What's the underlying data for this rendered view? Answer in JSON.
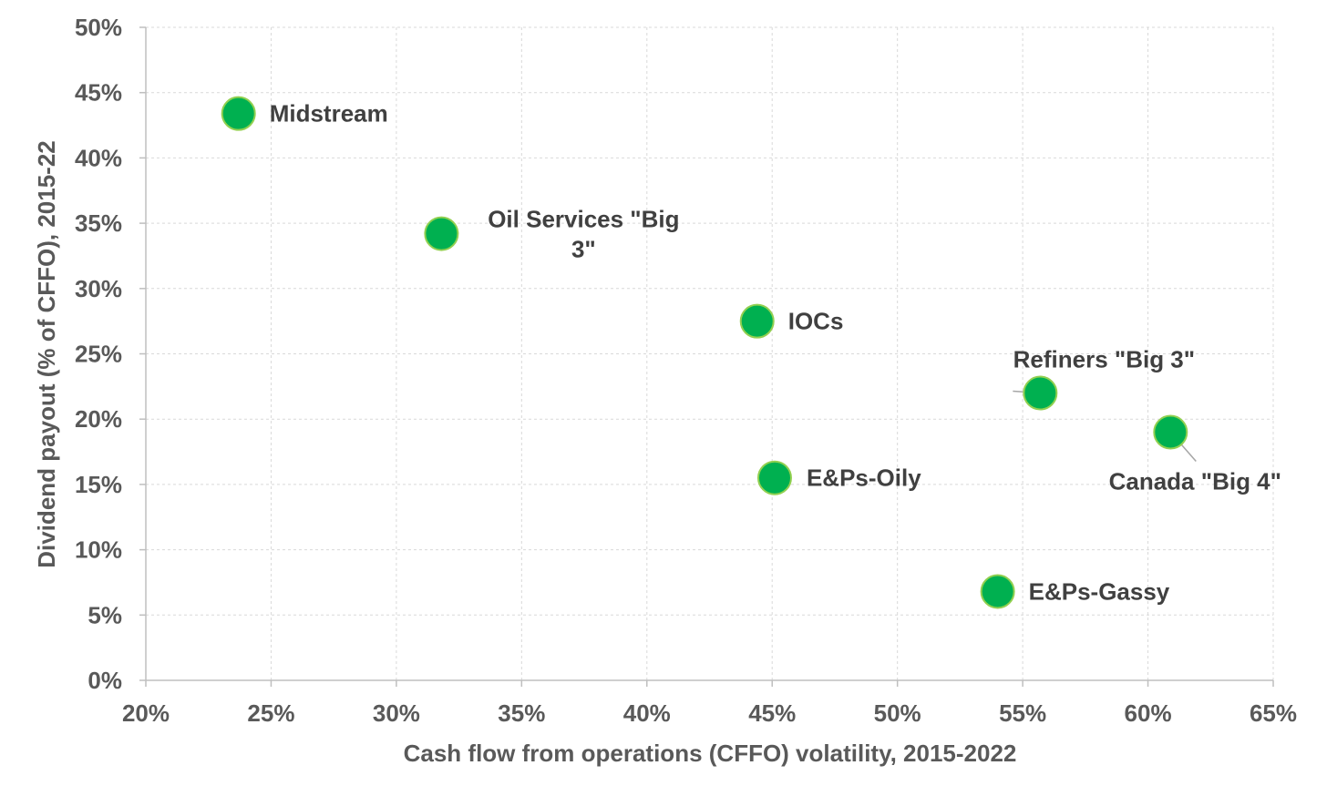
{
  "chart_data": {
    "type": "scatter",
    "xlabel": "Cash flow from operations (CFFO) volatility, 2015-2022",
    "ylabel": "Dividend payout (% of CFFO), 2015-22",
    "xlim": [
      20,
      65
    ],
    "ylim": [
      0,
      50
    ],
    "x_ticks": [
      "20%",
      "25%",
      "30%",
      "35%",
      "40%",
      "45%",
      "50%",
      "55%",
      "60%",
      "65%"
    ],
    "y_ticks": [
      "0%",
      "5%",
      "10%",
      "15%",
      "20%",
      "25%",
      "30%",
      "35%",
      "40%",
      "45%",
      "50%"
    ],
    "grid": "dashed",
    "marker_color": "#00b050",
    "marker_edge_color": "#92d050",
    "points": [
      {
        "label_lines": [
          "Midstream"
        ],
        "x": 23.7,
        "y": 43.4
      },
      {
        "label_lines": [
          "Oil Services \"Big",
          "3\""
        ],
        "x": 31.8,
        "y": 34.2
      },
      {
        "label_lines": [
          "IOCs"
        ],
        "x": 44.4,
        "y": 27.5
      },
      {
        "label_lines": [
          "Refiners \"Big 3\""
        ],
        "x": 55.7,
        "y": 22.0
      },
      {
        "label_lines": [
          "Canada \"Big 4\""
        ],
        "x": 60.9,
        "y": 19.0
      },
      {
        "label_lines": [
          "E&Ps-Oily"
        ],
        "x": 45.1,
        "y": 15.5
      },
      {
        "label_lines": [
          "E&Ps-Gassy"
        ],
        "x": 54.0,
        "y": 6.8
      }
    ]
  }
}
